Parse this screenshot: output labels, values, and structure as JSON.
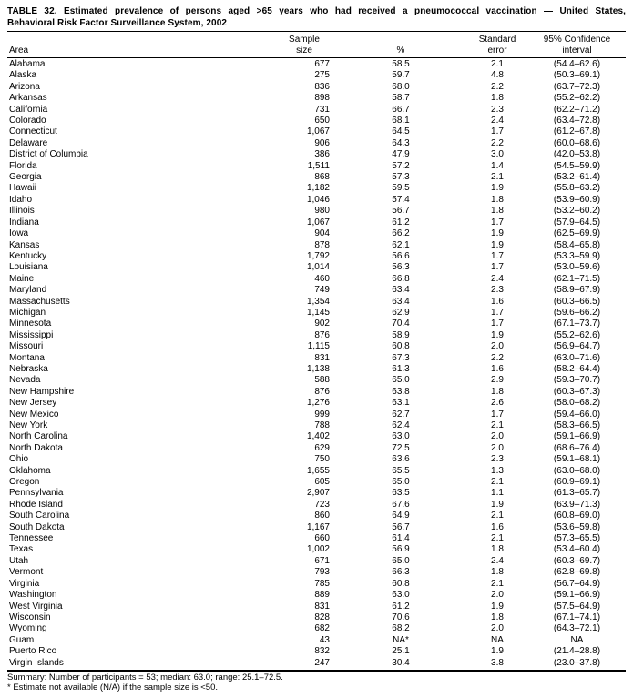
{
  "title": {
    "pre": "TABLE 32. Estimated prevalence of persons aged ",
    "geq": ">",
    "post": "65 years who had received a pneumococcal vaccination — United States,",
    "line2": "Behavioral Risk Factor Surveillance System, 2002"
  },
  "columns": {
    "area": "Area",
    "sample_line1": "Sample",
    "sample_line2": "size",
    "pct": "%",
    "se_line1": "Standard",
    "se_line2": "error",
    "ci_line1": "95% Confidence",
    "ci_line2": "interval"
  },
  "rows": [
    {
      "area": "Alabama",
      "sample": "677",
      "pct": "58.5",
      "se": "2.1",
      "ci": "(54.4–62.6)"
    },
    {
      "area": "Alaska",
      "sample": "275",
      "pct": "59.7",
      "se": "4.8",
      "ci": "(50.3–69.1)"
    },
    {
      "area": "Arizona",
      "sample": "836",
      "pct": "68.0",
      "se": "2.2",
      "ci": "(63.7–72.3)"
    },
    {
      "area": "Arkansas",
      "sample": "898",
      "pct": "58.7",
      "se": "1.8",
      "ci": "(55.2–62.2)"
    },
    {
      "area": "California",
      "sample": "731",
      "pct": "66.7",
      "se": "2.3",
      "ci": "(62.2–71.2)"
    },
    {
      "area": "Colorado",
      "sample": "650",
      "pct": "68.1",
      "se": "2.4",
      "ci": "(63.4–72.8)"
    },
    {
      "area": "Connecticut",
      "sample": "1,067",
      "pct": "64.5",
      "se": "1.7",
      "ci": "(61.2–67.8)"
    },
    {
      "area": "Delaware",
      "sample": "906",
      "pct": "64.3",
      "se": "2.2",
      "ci": "(60.0–68.6)"
    },
    {
      "area": "District of Columbia",
      "sample": "386",
      "pct": "47.9",
      "se": "3.0",
      "ci": "(42.0–53.8)"
    },
    {
      "area": "Florida",
      "sample": "1,511",
      "pct": "57.2",
      "se": "1.4",
      "ci": "(54.5–59.9)"
    },
    {
      "area": "Georgia",
      "sample": "868",
      "pct": "57.3",
      "se": "2.1",
      "ci": "(53.2–61.4)"
    },
    {
      "area": "Hawaii",
      "sample": "1,182",
      "pct": "59.5",
      "se": "1.9",
      "ci": "(55.8–63.2)"
    },
    {
      "area": "Idaho",
      "sample": "1,046",
      "pct": "57.4",
      "se": "1.8",
      "ci": "(53.9–60.9)"
    },
    {
      "area": "Illinois",
      "sample": "980",
      "pct": "56.7",
      "se": "1.8",
      "ci": "(53.2–60.2)"
    },
    {
      "area": "Indiana",
      "sample": "1,067",
      "pct": "61.2",
      "se": "1.7",
      "ci": "(57.9–64.5)"
    },
    {
      "area": "Iowa",
      "sample": "904",
      "pct": "66.2",
      "se": "1.9",
      "ci": "(62.5–69.9)"
    },
    {
      "area": "Kansas",
      "sample": "878",
      "pct": "62.1",
      "se": "1.9",
      "ci": "(58.4–65.8)"
    },
    {
      "area": "Kentucky",
      "sample": "1,792",
      "pct": "56.6",
      "se": "1.7",
      "ci": "(53.3–59.9)"
    },
    {
      "area": "Louisiana",
      "sample": "1,014",
      "pct": "56.3",
      "se": "1.7",
      "ci": "(53.0–59.6)"
    },
    {
      "area": "Maine",
      "sample": "460",
      "pct": "66.8",
      "se": "2.4",
      "ci": "(62.1–71.5)"
    },
    {
      "area": "Maryland",
      "sample": "749",
      "pct": "63.4",
      "se": "2.3",
      "ci": "(58.9–67.9)"
    },
    {
      "area": "Massachusetts",
      "sample": "1,354",
      "pct": "63.4",
      "se": "1.6",
      "ci": "(60.3–66.5)"
    },
    {
      "area": "Michigan",
      "sample": "1,145",
      "pct": "62.9",
      "se": "1.7",
      "ci": "(59.6–66.2)"
    },
    {
      "area": "Minnesota",
      "sample": "902",
      "pct": "70.4",
      "se": "1.7",
      "ci": "(67.1–73.7)"
    },
    {
      "area": "Mississippi",
      "sample": "876",
      "pct": "58.9",
      "se": "1.9",
      "ci": "(55.2–62.6)"
    },
    {
      "area": "Missouri",
      "sample": "1,115",
      "pct": "60.8",
      "se": "2.0",
      "ci": "(56.9–64.7)"
    },
    {
      "area": "Montana",
      "sample": "831",
      "pct": "67.3",
      "se": "2.2",
      "ci": "(63.0–71.6)"
    },
    {
      "area": "Nebraska",
      "sample": "1,138",
      "pct": "61.3",
      "se": "1.6",
      "ci": "(58.2–64.4)"
    },
    {
      "area": "Nevada",
      "sample": "588",
      "pct": "65.0",
      "se": "2.9",
      "ci": "(59.3–70.7)"
    },
    {
      "area": "New Hampshire",
      "sample": "876",
      "pct": "63.8",
      "se": "1.8",
      "ci": "(60.3–67.3)"
    },
    {
      "area": "New Jersey",
      "sample": "1,276",
      "pct": "63.1",
      "se": "2.6",
      "ci": "(58.0–68.2)"
    },
    {
      "area": "New Mexico",
      "sample": "999",
      "pct": "62.7",
      "se": "1.7",
      "ci": "(59.4–66.0)"
    },
    {
      "area": "New York",
      "sample": "788",
      "pct": "62.4",
      "se": "2.1",
      "ci": "(58.3–66.5)"
    },
    {
      "area": "North Carolina",
      "sample": "1,402",
      "pct": "63.0",
      "se": "2.0",
      "ci": "(59.1–66.9)"
    },
    {
      "area": "North Dakota",
      "sample": "629",
      "pct": "72.5",
      "se": "2.0",
      "ci": "(68.6–76.4)"
    },
    {
      "area": "Ohio",
      "sample": "750",
      "pct": "63.6",
      "se": "2.3",
      "ci": "(59.1–68.1)"
    },
    {
      "area": "Oklahoma",
      "sample": "1,655",
      "pct": "65.5",
      "se": "1.3",
      "ci": "(63.0–68.0)"
    },
    {
      "area": "Oregon",
      "sample": "605",
      "pct": "65.0",
      "se": "2.1",
      "ci": "(60.9–69.1)"
    },
    {
      "area": "Pennsylvania",
      "sample": "2,907",
      "pct": "63.5",
      "se": "1.1",
      "ci": "(61.3–65.7)"
    },
    {
      "area": "Rhode Island",
      "sample": "723",
      "pct": "67.6",
      "se": "1.9",
      "ci": "(63.9–71.3)"
    },
    {
      "area": "South Carolina",
      "sample": "860",
      "pct": "64.9",
      "se": "2.1",
      "ci": "(60.8–69.0)"
    },
    {
      "area": "South Dakota",
      "sample": "1,167",
      "pct": "56.7",
      "se": "1.6",
      "ci": "(53.6–59.8)"
    },
    {
      "area": "Tennessee",
      "sample": "660",
      "pct": "61.4",
      "se": "2.1",
      "ci": "(57.3–65.5)"
    },
    {
      "area": "Texas",
      "sample": "1,002",
      "pct": "56.9",
      "se": "1.8",
      "ci": "(53.4–60.4)"
    },
    {
      "area": "Utah",
      "sample": "671",
      "pct": "65.0",
      "se": "2.4",
      "ci": "(60.3–69.7)"
    },
    {
      "area": "Vermont",
      "sample": "793",
      "pct": "66.3",
      "se": "1.8",
      "ci": "(62.8–69.8)"
    },
    {
      "area": "Virginia",
      "sample": "785",
      "pct": "60.8",
      "se": "2.1",
      "ci": "(56.7–64.9)"
    },
    {
      "area": "Washington",
      "sample": "889",
      "pct": "63.0",
      "se": "2.0",
      "ci": "(59.1–66.9)"
    },
    {
      "area": "West Virginia",
      "sample": "831",
      "pct": "61.2",
      "se": "1.9",
      "ci": "(57.5–64.9)"
    },
    {
      "area": "Wisconsin",
      "sample": "828",
      "pct": "70.6",
      "se": "1.8",
      "ci": "(67.1–74.1)"
    },
    {
      "area": "Wyoming",
      "sample": "682",
      "pct": "68.2",
      "se": "2.0",
      "ci": "(64.3–72.1)"
    },
    {
      "area": "Guam",
      "sample": "43",
      "pct": "NA*",
      "se": "NA",
      "ci": "NA"
    },
    {
      "area": "Puerto Rico",
      "sample": "832",
      "pct": "25.1",
      "se": "1.9",
      "ci": "(21.4–28.8)"
    },
    {
      "area": "Virgin Islands",
      "sample": "247",
      "pct": "30.4",
      "se": "3.8",
      "ci": "(23.0–37.8)"
    }
  ],
  "footer": {
    "summary": "Summary: Number of participants = 53; median: 63.0; range: 25.1–72.5.",
    "footnote": "* Estimate not available (N/A) if the sample size is <50."
  }
}
